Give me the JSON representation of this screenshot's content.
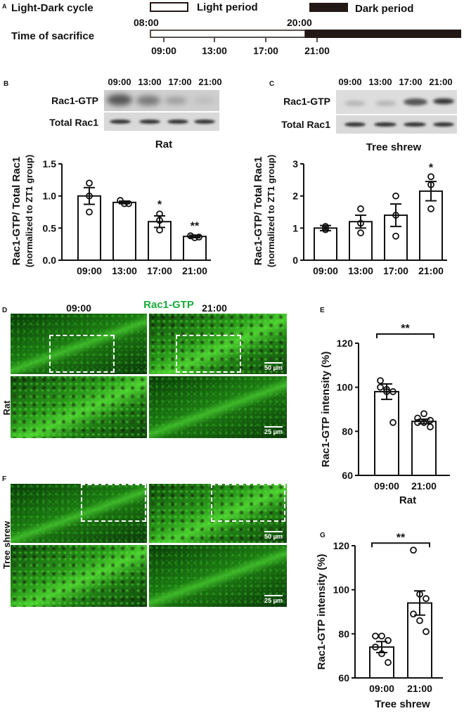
{
  "panelA": {
    "label": "A",
    "title1": "Light-Dark cycle",
    "legend_light": "Light period",
    "legend_dark": "Dark period",
    "t_start": "08:00",
    "t_switch": "20:00",
    "title2": "Time of sacrifice",
    "times": [
      "09:00",
      "13:00",
      "17:00",
      "21:00"
    ],
    "colors": {
      "light": "#ffffff",
      "dark": "#231815"
    }
  },
  "panelB": {
    "label": "B",
    "times": [
      "09:00",
      "13:00",
      "17:00",
      "21:00"
    ],
    "row1": "Rac1-GTP",
    "row2": "Total Rac1",
    "species": "Rat"
  },
  "panelC": {
    "label": "C",
    "times": [
      "09:00",
      "13:00",
      "17:00",
      "21:00"
    ],
    "row1": "Rac1-GTP",
    "row2": "Total Rac1",
    "species": "Tree shrew"
  },
  "panelD": {
    "label": "D",
    "col1": "09:00",
    "title": "Rac1-GTP",
    "col2": "21:00",
    "row_label": "Rat",
    "scale1": "50 μm",
    "scale2": "25 μm",
    "title_color": "#1aaa3a"
  },
  "panelE": {
    "label": "E"
  },
  "panelF": {
    "label": "F",
    "row_label": "Tree shrew",
    "scale1": "50 μm",
    "scale2": "25 μm"
  },
  "panelG": {
    "label": "G"
  },
  "chart_data": [
    {
      "id": "B",
      "type": "bar",
      "categories": [
        "09:00",
        "13:00",
        "17:00",
        "21:00"
      ],
      "values": [
        1.0,
        0.9,
        0.6,
        0.37
      ],
      "sem": [
        0.13,
        0.02,
        0.09,
        0.02
      ],
      "points": [
        [
          1.2,
          1.0,
          0.75
        ],
        [
          0.93,
          0.88,
          0.88
        ],
        [
          0.72,
          0.62,
          0.47
        ],
        [
          0.38,
          0.35,
          0.36
        ]
      ],
      "significance": [
        "",
        "",
        "*",
        "**"
      ],
      "ylabel": "Rac1-GTP/ Total Rac1",
      "ylabel2": "(normalized to ZT1 group)",
      "xlabel": "",
      "ylim": [
        0,
        1.5
      ],
      "yticks": [
        0,
        0.5,
        1.0,
        1.5
      ],
      "ytick_labels": [
        "0.0",
        "0.5",
        "1.0",
        "1.5"
      ],
      "grid": false
    },
    {
      "id": "C",
      "type": "bar",
      "categories": [
        "09:00",
        "13:00",
        "17:00",
        "21:00"
      ],
      "values": [
        1.0,
        1.2,
        1.4,
        2.15
      ],
      "sem": [
        0.08,
        0.2,
        0.35,
        0.3
      ],
      "points": [
        [
          1.05,
          0.95,
          1.0
        ],
        [
          1.6,
          1.15,
          0.85
        ],
        [
          2.0,
          1.4,
          0.75
        ],
        [
          2.6,
          2.35,
          1.6
        ]
      ],
      "significance": [
        "",
        "",
        "",
        "*"
      ],
      "ylabel": "Rac1-GTP/ Total Rac1",
      "ylabel2": "(normalized to ZT1 group)",
      "xlabel": "",
      "ylim": [
        0,
        3
      ],
      "yticks": [
        0,
        1,
        2,
        3
      ],
      "ytick_labels": [
        "0",
        "1",
        "2",
        "3"
      ],
      "grid": false
    },
    {
      "id": "E",
      "type": "bar",
      "categories": [
        "09:00",
        "21:00"
      ],
      "values": [
        98,
        84.5
      ],
      "sem": [
        3.5,
        1
      ],
      "points": [
        [
          103,
          99,
          98,
          100,
          98,
          84
        ],
        [
          86,
          84,
          82,
          84,
          88,
          85
        ]
      ],
      "bracket": "**",
      "ylabel": "Rac1-GTP intensity (%)",
      "ylabel2": "",
      "xlabel": "Rat",
      "ylim": [
        60,
        120
      ],
      "yticks": [
        60,
        80,
        100,
        120
      ],
      "ytick_labels": [
        "60",
        "80",
        "100",
        "120"
      ],
      "grid": false
    },
    {
      "id": "G",
      "type": "bar",
      "categories": [
        "09:00",
        "21:00"
      ],
      "values": [
        74,
        94
      ],
      "sem": [
        2.5,
        5.5
      ],
      "points": [
        [
          79,
          79,
          77,
          74,
          71,
          67
        ],
        [
          118,
          98,
          96,
          89,
          86,
          81
        ]
      ],
      "bracket": "**",
      "ylabel": "Rac1-GTP intensity (%)",
      "ylabel2": "",
      "xlabel": "Tree shrew",
      "ylim": [
        60,
        120
      ],
      "yticks": [
        60,
        80,
        100,
        120
      ],
      "ytick_labels": [
        "60",
        "80",
        "100",
        "120"
      ],
      "grid": false
    }
  ]
}
